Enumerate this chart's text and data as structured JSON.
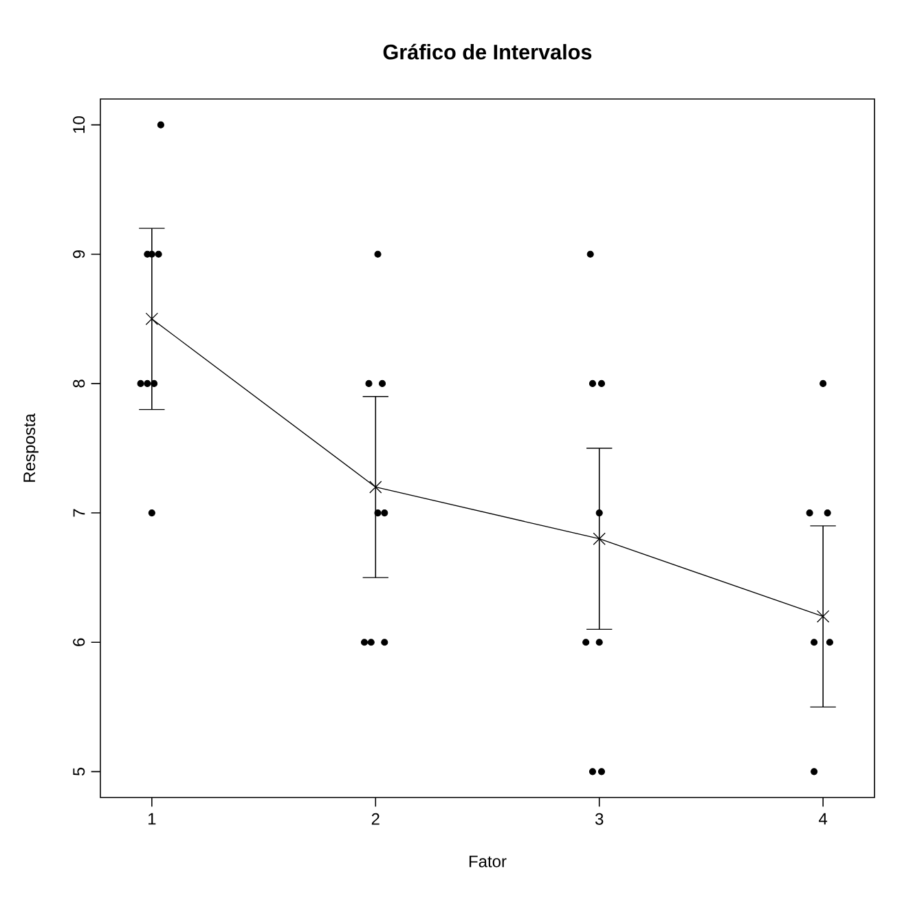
{
  "chart_data": {
    "type": "scatter",
    "title": "Gráfico de Intervalos",
    "xlabel": "Fator",
    "ylabel": "Resposta",
    "xlim": [
      0.77,
      4.23
    ],
    "ylim": [
      4.8,
      10.2
    ],
    "xticks": [
      1,
      2,
      3,
      4
    ],
    "yticks": [
      5,
      6,
      7,
      8,
      9,
      10
    ],
    "grid": false,
    "series": [
      {
        "color": "#000000",
        "marker": "circle",
        "x": [
          1.04,
          0.98,
          1.0,
          1.03,
          0.95,
          0.98,
          1.01,
          1.0,
          2.01,
          1.97,
          2.03,
          2.01,
          2.04,
          1.95,
          1.98,
          2.04,
          2.96,
          2.97,
          3.01,
          3.0,
          2.94,
          3.0,
          2.97,
          3.01,
          4.0,
          3.94,
          4.02,
          3.96,
          4.03,
          3.96
        ],
        "values": [
          10,
          9,
          9,
          9,
          8,
          8,
          8,
          7,
          9,
          8,
          8,
          7,
          7,
          6,
          6,
          6,
          9,
          8,
          8,
          7,
          6,
          6,
          5,
          5,
          8,
          7,
          7,
          6,
          6,
          5
        ]
      },
      {
        "type": "line",
        "color": "#000000",
        "marker": "cross",
        "line_style": "solid",
        "x": [
          1,
          2,
          3,
          4
        ],
        "values": [
          8.5,
          7.2,
          6.8,
          6.2
        ],
        "errors": [
          [
            7.8,
            9.2
          ],
          [
            6.5,
            7.9
          ],
          [
            6.1,
            7.5
          ],
          [
            5.5,
            6.9
          ]
        ]
      }
    ]
  }
}
